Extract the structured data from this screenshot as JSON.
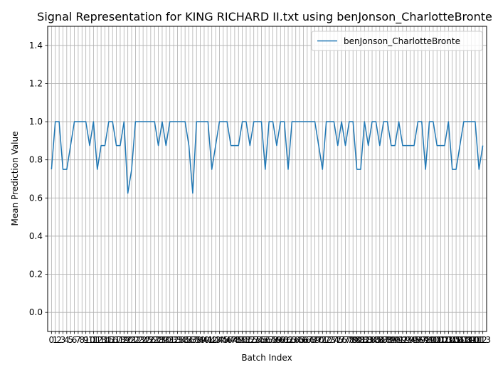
{
  "chart_data": {
    "type": "line",
    "title": "Signal Representation for KING RICHARD II.txt using benJonson_CharlotteBronte",
    "xlabel": "Batch Index",
    "ylabel": "Mean Prediction Value",
    "ylim": [
      -0.1,
      1.5
    ],
    "xlim": [
      -1,
      114
    ],
    "yticks": [
      0.0,
      0.2,
      0.4,
      0.6,
      0.8,
      1.0,
      1.2,
      1.4
    ],
    "ytick_labels": [
      "0.0",
      "0.2",
      "0.4",
      "0.6",
      "0.8",
      "1.0",
      "1.2",
      "1.4"
    ],
    "grid": true,
    "legend_position": "upper right",
    "series": [
      {
        "name": "benJonson_CharlotteBronte",
        "color": "#1f77b4",
        "x": [
          0,
          1,
          2,
          3,
          4,
          5,
          6,
          7,
          8,
          9,
          10,
          11,
          12,
          13,
          14,
          15,
          16,
          17,
          18,
          19,
          20,
          21,
          22,
          23,
          24,
          25,
          26,
          27,
          28,
          29,
          30,
          31,
          32,
          33,
          34,
          35,
          36,
          37,
          38,
          39,
          40,
          41,
          42,
          43,
          44,
          45,
          46,
          47,
          48,
          49,
          50,
          51,
          52,
          53,
          54,
          55,
          56,
          57,
          58,
          59,
          60,
          61,
          62,
          63,
          64,
          65,
          66,
          67,
          68,
          69,
          70,
          71,
          72,
          73,
          74,
          75,
          76,
          77,
          78,
          79,
          80,
          81,
          82,
          83,
          84,
          85,
          86,
          87,
          88,
          89,
          90,
          91,
          92,
          93,
          94,
          95,
          96,
          97,
          98,
          99,
          100,
          101,
          102,
          103,
          104,
          105,
          106,
          107,
          108,
          109,
          110,
          111,
          112,
          113
        ],
        "values": [
          0.75,
          1.0,
          1.0,
          0.75,
          0.75,
          0.875,
          1.0,
          1.0,
          1.0,
          1.0,
          0.875,
          1.0,
          0.75,
          0.875,
          0.875,
          1.0,
          1.0,
          0.875,
          0.875,
          1.0,
          0.625,
          0.75,
          1.0,
          1.0,
          1.0,
          1.0,
          1.0,
          1.0,
          0.875,
          1.0,
          0.875,
          1.0,
          1.0,
          1.0,
          1.0,
          1.0,
          0.875,
          0.625,
          1.0,
          1.0,
          1.0,
          1.0,
          0.75,
          0.875,
          1.0,
          1.0,
          1.0,
          0.875,
          0.875,
          0.875,
          1.0,
          1.0,
          0.875,
          1.0,
          1.0,
          1.0,
          0.75,
          1.0,
          1.0,
          0.875,
          1.0,
          1.0,
          0.75,
          1.0,
          1.0,
          1.0,
          1.0,
          1.0,
          1.0,
          1.0,
          0.875,
          0.75,
          1.0,
          1.0,
          1.0,
          0.875,
          1.0,
          0.875,
          1.0,
          1.0,
          0.75,
          0.75,
          1.0,
          0.875,
          1.0,
          1.0,
          0.875,
          1.0,
          1.0,
          0.875,
          0.875,
          1.0,
          0.875,
          0.875,
          0.875,
          0.875,
          1.0,
          1.0,
          0.75,
          1.0,
          1.0,
          0.875,
          0.875,
          0.875,
          1.0,
          0.75,
          0.75,
          0.875,
          1.0,
          1.0,
          1.0,
          1.0,
          0.75,
          0.875
        ]
      }
    ]
  }
}
